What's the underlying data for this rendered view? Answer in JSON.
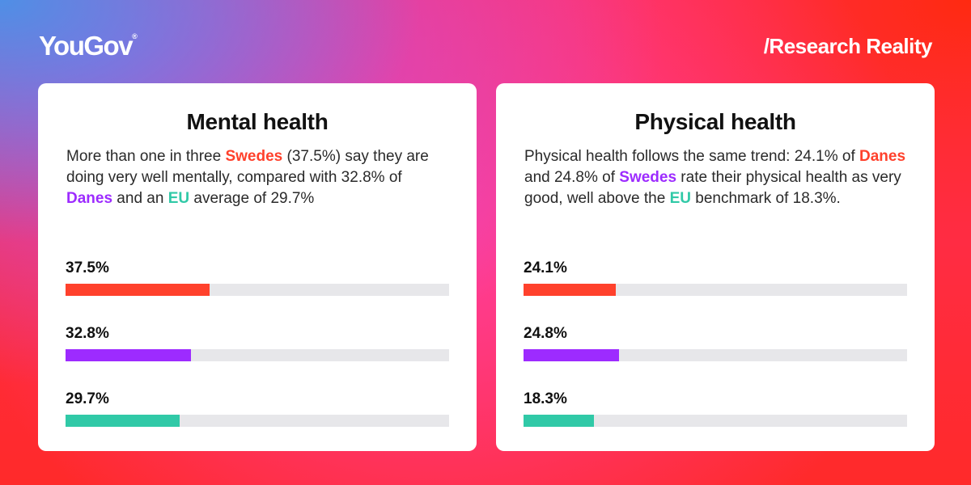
{
  "brand": {
    "logo": "YouGov",
    "logo_mark": "®",
    "tagline": "/Research Reality"
  },
  "colors": {
    "red": "#ff412c",
    "purple": "#9d2bff",
    "teal": "#30c9a7",
    "track": "#e7e7ea"
  },
  "chart_data": [
    {
      "type": "bar",
      "orientation": "horizontal",
      "title": "Mental health",
      "description": [
        {
          "text": "More than one in three "
        },
        {
          "text": "Swedes",
          "color": "#ff412c",
          "bold": true
        },
        {
          "text": " (37.5%) say they are doing very well mentally, compared with 32.8% of "
        },
        {
          "text": "Danes",
          "color": "#9d2bff",
          "bold": true
        },
        {
          "text": " and an "
        },
        {
          "text": "EU",
          "color": "#30c9a7",
          "bold": true
        },
        {
          "text": " average of 29.7%"
        }
      ],
      "xlim": [
        0,
        100
      ],
      "series": [
        {
          "label": "37.5%",
          "value": 37.5,
          "color": "#ff412c"
        },
        {
          "label": "32.8%",
          "value": 32.8,
          "color": "#9d2bff"
        },
        {
          "label": "29.7%",
          "value": 29.7,
          "color": "#30c9a7"
        }
      ]
    },
    {
      "type": "bar",
      "orientation": "horizontal",
      "title": "Physical health",
      "description": [
        {
          "text": "Physical health follows the same trend: 24.1% of "
        },
        {
          "text": "Danes",
          "color": "#ff412c",
          "bold": true
        },
        {
          "text": " and 24.8% of "
        },
        {
          "text": "Swedes",
          "color": "#9d2bff",
          "bold": true
        },
        {
          "text": " rate their physical health as very good, well above the "
        },
        {
          "text": "EU",
          "color": "#30c9a7",
          "bold": true
        },
        {
          "text": " benchmark of 18.3%."
        }
      ],
      "xlim": [
        0,
        100
      ],
      "series": [
        {
          "label": "24.1%",
          "value": 24.1,
          "color": "#ff412c"
        },
        {
          "label": "24.8%",
          "value": 24.8,
          "color": "#9d2bff"
        },
        {
          "label": "18.3%",
          "value": 18.3,
          "color": "#30c9a7"
        }
      ]
    }
  ]
}
